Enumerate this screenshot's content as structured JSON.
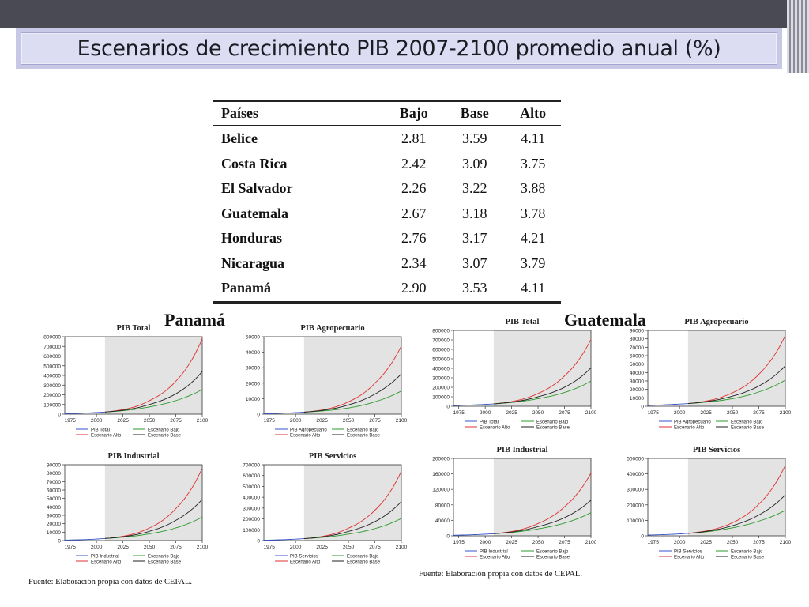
{
  "slide": {
    "title": "Escenarios de crecimiento PIB 2007-2100 promedio anual (%)"
  },
  "table": {
    "headers": [
      "Países",
      "Bajo",
      "Base",
      "Alto"
    ],
    "rows": [
      {
        "country": "Belice",
        "bajo": "2.81",
        "base": "3.59",
        "alto": "4.11"
      },
      {
        "country": "Costa Rica",
        "bajo": "2.42",
        "base": "3.09",
        "alto": "3.75"
      },
      {
        "country": "El Salvador",
        "bajo": "2.26",
        "base": "3.22",
        "alto": "3.88"
      },
      {
        "country": "Guatemala",
        "bajo": "2.67",
        "base": "3.18",
        "alto": "3.78"
      },
      {
        "country": "Honduras",
        "bajo": "2.76",
        "base": "3.17",
        "alto": "4.21"
      },
      {
        "country": "Nicaragua",
        "bajo": "2.34",
        "base": "3.07",
        "alto": "3.79"
      },
      {
        "country": "Panamá",
        "bajo": "2.90",
        "base": "3.53",
        "alto": "4.11"
      }
    ]
  },
  "labels": {
    "panama": "Panamá",
    "guatemala": "Guatemala"
  },
  "sources": {
    "left": "Fuente: Elaboración propia con datos de CEPAL.",
    "right": "Fuente: Elaboración propia con datos de CEPAL."
  },
  "colors": {
    "historical": "#3355cc",
    "alto": "#e03030",
    "base": "#222222",
    "bajo": "#2a9a2a",
    "projection_shade": "#e3e3e3"
  },
  "chart_data": [
    {
      "country": "Panamá",
      "type": "line",
      "title": "PIB Total",
      "x_ticks": [
        1975,
        2000,
        2025,
        2050,
        2075,
        2100
      ],
      "xlim": [
        1970,
        2100
      ],
      "projection_start": 2008,
      "ylim": [
        0,
        800000
      ],
      "y_ticks": [
        0,
        100000,
        200000,
        300000,
        400000,
        500000,
        600000,
        700000,
        800000
      ],
      "series": [
        {
          "name": "PIB Total",
          "role": "hist",
          "x": [
            1970,
            1990,
            2008
          ],
          "y": [
            5000,
            12000,
            22000
          ]
        },
        {
          "name": "Escenario Alto",
          "role": "alto",
          "x": [
            2008,
            2050,
            2075,
            2100
          ],
          "y": [
            22000,
            140000,
            340000,
            780000
          ]
        },
        {
          "name": "Escenario Bajo",
          "role": "bajo",
          "x": [
            2008,
            2050,
            2075,
            2100
          ],
          "y": [
            22000,
            75000,
            140000,
            255000
          ]
        },
        {
          "name": "Escenario Base",
          "role": "base",
          "x": [
            2008,
            2050,
            2075,
            2100
          ],
          "y": [
            22000,
            100000,
            210000,
            440000
          ]
        }
      ]
    },
    {
      "country": "Panamá",
      "type": "line",
      "title": "PIB Agropecuario",
      "x_ticks": [
        1975,
        2000,
        2025,
        2050,
        2075,
        2100
      ],
      "xlim": [
        1970,
        2100
      ],
      "projection_start": 2008,
      "ylim": [
        0,
        50000
      ],
      "y_ticks": [
        0,
        10000,
        20000,
        30000,
        40000,
        50000
      ],
      "series": [
        {
          "name": "PIB Agropecuario",
          "role": "hist",
          "x": [
            1970,
            1990,
            2008
          ],
          "y": [
            300,
            700,
            1300
          ]
        },
        {
          "name": "Escenario Alto",
          "role": "alto",
          "x": [
            2008,
            2050,
            2075,
            2100
          ],
          "y": [
            1300,
            8000,
            20000,
            44000
          ]
        },
        {
          "name": "Escenario Bajo",
          "role": "bajo",
          "x": [
            2008,
            2050,
            2075,
            2100
          ],
          "y": [
            1300,
            4000,
            8000,
            15000
          ]
        },
        {
          "name": "Escenario Base",
          "role": "base",
          "x": [
            2008,
            2050,
            2075,
            2100
          ],
          "y": [
            1300,
            6000,
            13000,
            26000
          ]
        }
      ]
    },
    {
      "country": "Panamá",
      "type": "line",
      "title": "PIB Industrial",
      "x_ticks": [
        1975,
        2000,
        2025,
        2050,
        2075,
        2100
      ],
      "xlim": [
        1970,
        2100
      ],
      "projection_start": 2008,
      "ylim": [
        0,
        90000
      ],
      "y_ticks": [
        0,
        10000,
        20000,
        30000,
        40000,
        50000,
        60000,
        70000,
        80000,
        90000
      ],
      "series": [
        {
          "name": "PIB Industrial",
          "role": "hist",
          "x": [
            1970,
            1990,
            2008
          ],
          "y": [
            600,
            1200,
            2500
          ]
        },
        {
          "name": "Escenario Alto",
          "role": "alto",
          "x": [
            2008,
            2050,
            2075,
            2100
          ],
          "y": [
            2500,
            15000,
            38000,
            86000
          ]
        },
        {
          "name": "Escenario Bajo",
          "role": "bajo",
          "x": [
            2008,
            2050,
            2075,
            2100
          ],
          "y": [
            2500,
            8000,
            15000,
            28000
          ]
        },
        {
          "name": "Escenario Base",
          "role": "base",
          "x": [
            2008,
            2050,
            2075,
            2100
          ],
          "y": [
            2500,
            11000,
            24000,
            49000
          ]
        }
      ]
    },
    {
      "country": "Panamá",
      "type": "line",
      "title": "PIB Servicios",
      "x_ticks": [
        1975,
        2000,
        2025,
        2050,
        2075,
        2100
      ],
      "xlim": [
        1970,
        2100
      ],
      "projection_start": 2008,
      "ylim": [
        0,
        700000
      ],
      "y_ticks": [
        0,
        100000,
        200000,
        300000,
        400000,
        500000,
        600000,
        700000
      ],
      "series": [
        {
          "name": "PIB Servicios",
          "role": "hist",
          "x": [
            1970,
            1990,
            2008
          ],
          "y": [
            4000,
            9000,
            18000
          ]
        },
        {
          "name": "Escenario Alto",
          "role": "alto",
          "x": [
            2008,
            2050,
            2075,
            2100
          ],
          "y": [
            18000,
            115000,
            280000,
            640000
          ]
        },
        {
          "name": "Escenario Bajo",
          "role": "bajo",
          "x": [
            2008,
            2050,
            2075,
            2100
          ],
          "y": [
            18000,
            60000,
            110000,
            205000
          ]
        },
        {
          "name": "Escenario Base",
          "role": "base",
          "x": [
            2008,
            2050,
            2075,
            2100
          ],
          "y": [
            18000,
            85000,
            175000,
            360000
          ]
        }
      ]
    },
    {
      "country": "Guatemala",
      "type": "line",
      "title": "PIB Total",
      "x_ticks": [
        1975,
        2000,
        2025,
        2050,
        2075,
        2100
      ],
      "xlim": [
        1970,
        2100
      ],
      "projection_start": 2008,
      "ylim": [
        0,
        800000
      ],
      "y_ticks": [
        0,
        100000,
        200000,
        300000,
        400000,
        500000,
        600000,
        700000,
        800000
      ],
      "series": [
        {
          "name": "PIB Total",
          "role": "hist",
          "x": [
            1970,
            1990,
            2008
          ],
          "y": [
            8000,
            15000,
            25000
          ]
        },
        {
          "name": "Escenario Alto",
          "role": "alto",
          "x": [
            2008,
            2050,
            2075,
            2100
          ],
          "y": [
            25000,
            135000,
            320000,
            705000
          ]
        },
        {
          "name": "Escenario Bajo",
          "role": "bajo",
          "x": [
            2008,
            2050,
            2075,
            2100
          ],
          "y": [
            25000,
            80000,
            145000,
            265000
          ]
        },
        {
          "name": "Escenario Base",
          "role": "base",
          "x": [
            2008,
            2050,
            2075,
            2100
          ],
          "y": [
            25000,
            100000,
            200000,
            405000
          ]
        }
      ]
    },
    {
      "country": "Guatemala",
      "type": "line",
      "title": "PIB Agropecuario",
      "x_ticks": [
        1975,
        2000,
        2025,
        2050,
        2075,
        2100
      ],
      "xlim": [
        1970,
        2100
      ],
      "projection_start": 2008,
      "ylim": [
        0,
        90000
      ],
      "y_ticks": [
        0,
        10000,
        20000,
        30000,
        40000,
        50000,
        60000,
        70000,
        80000,
        90000
      ],
      "series": [
        {
          "name": "PIB Agropecuario",
          "role": "hist",
          "x": [
            1970,
            1990,
            2008
          ],
          "y": [
            1000,
            2000,
            3200
          ]
        },
        {
          "name": "Escenario Alto",
          "role": "alto",
          "x": [
            2008,
            2050,
            2075,
            2100
          ],
          "y": [
            3200,
            16000,
            38000,
            84000
          ]
        },
        {
          "name": "Escenario Bajo",
          "role": "bajo",
          "x": [
            2008,
            2050,
            2075,
            2100
          ],
          "y": [
            3200,
            9000,
            17000,
            31000
          ]
        },
        {
          "name": "Escenario Base",
          "role": "base",
          "x": [
            2008,
            2050,
            2075,
            2100
          ],
          "y": [
            3200,
            12000,
            24000,
            48000
          ]
        }
      ]
    },
    {
      "country": "Guatemala",
      "type": "line",
      "title": "PIB Industrial",
      "x_ticks": [
        1975,
        2000,
        2025,
        2050,
        2075,
        2100
      ],
      "xlim": [
        1970,
        2100
      ],
      "projection_start": 2008,
      "ylim": [
        0,
        200000
      ],
      "y_ticks": [
        0,
        40000,
        80000,
        120000,
        160000,
        200000
      ],
      "series": [
        {
          "name": "PIB Industrial",
          "role": "hist",
          "x": [
            1970,
            1990,
            2008
          ],
          "y": [
            1500,
            3000,
            5500
          ]
        },
        {
          "name": "Escenario Alto",
          "role": "alto",
          "x": [
            2008,
            2050,
            2075,
            2100
          ],
          "y": [
            5500,
            32000,
            75000,
            162000
          ]
        },
        {
          "name": "Escenario Bajo",
          "role": "bajo",
          "x": [
            2008,
            2050,
            2075,
            2100
          ],
          "y": [
            5500,
            18000,
            33000,
            60000
          ]
        },
        {
          "name": "Escenario Base",
          "role": "base",
          "x": [
            2008,
            2050,
            2075,
            2100
          ],
          "y": [
            5500,
            24000,
            47000,
            92000
          ]
        }
      ]
    },
    {
      "country": "Guatemala",
      "type": "line",
      "title": "PIB Servicios",
      "x_ticks": [
        1975,
        2000,
        2025,
        2050,
        2075,
        2100
      ],
      "xlim": [
        1970,
        2100
      ],
      "projection_start": 2008,
      "ylim": [
        0,
        500000
      ],
      "y_ticks": [
        0,
        100000,
        200000,
        300000,
        400000,
        500000
      ],
      "series": [
        {
          "name": "PIB Servicios",
          "role": "hist",
          "x": [
            1970,
            1990,
            2008
          ],
          "y": [
            5000,
            9000,
            16000
          ]
        },
        {
          "name": "Escenario Alto",
          "role": "alto",
          "x": [
            2008,
            2050,
            2075,
            2100
          ],
          "y": [
            16000,
            85000,
            205000,
            455000
          ]
        },
        {
          "name": "Escenario Bajo",
          "role": "bajo",
          "x": [
            2008,
            2050,
            2075,
            2100
          ],
          "y": [
            16000,
            52000,
            95000,
            165000
          ]
        },
        {
          "name": "Escenario Base",
          "role": "base",
          "x": [
            2008,
            2050,
            2075,
            2100
          ],
          "y": [
            16000,
            66000,
            135000,
            265000
          ]
        }
      ]
    }
  ]
}
